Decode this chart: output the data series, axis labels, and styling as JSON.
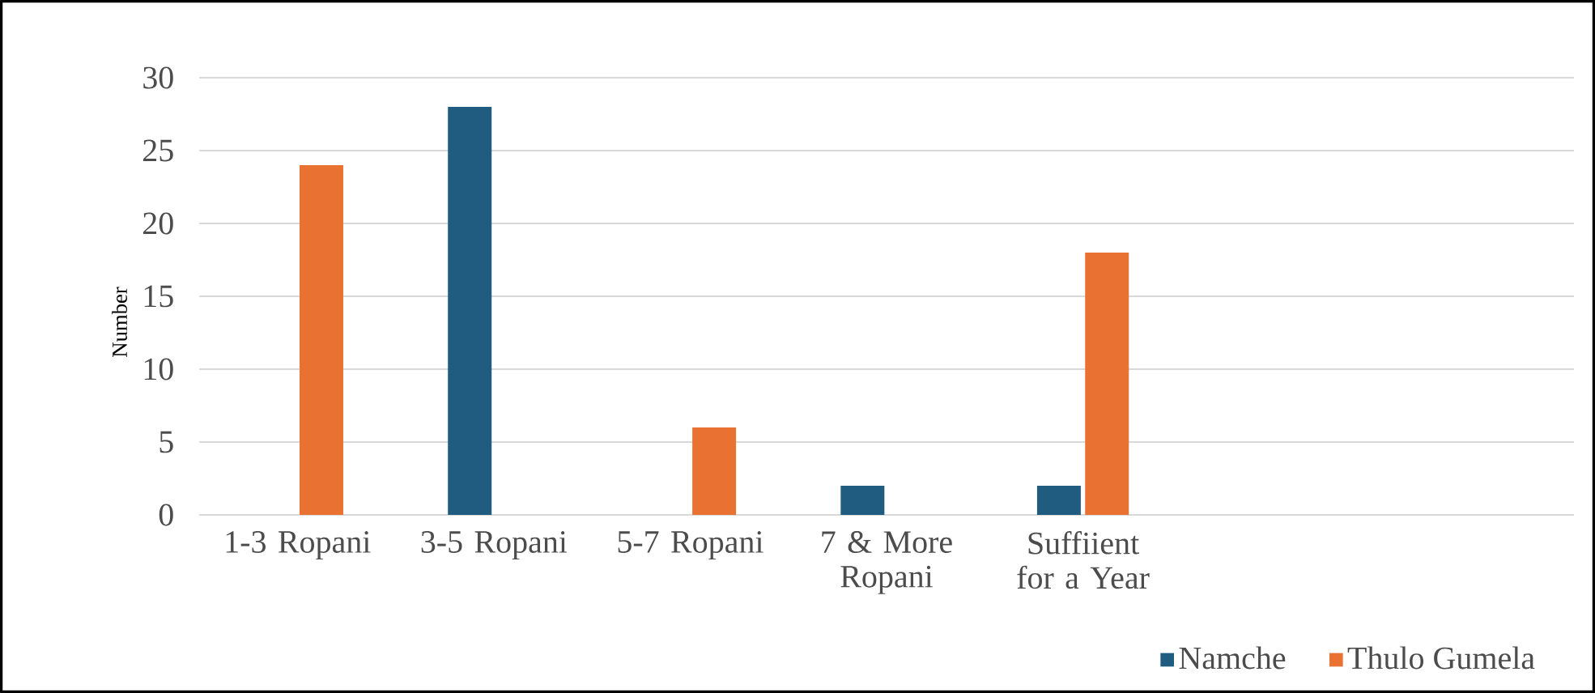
{
  "chart_data": {
    "type": "bar",
    "ylabel": "Number",
    "categories": [
      "1-3 Ropani",
      "3-5 Ropani",
      "5-7 Ropani",
      "7 & More Ropani",
      "Suffiient for a Year",
      null,
      null
    ],
    "series": [
      {
        "name": "Namche",
        "color": "#1f5c80",
        "values": [
          null,
          28,
          null,
          2,
          2,
          null,
          null
        ]
      },
      {
        "name": "Thulo Gumela",
        "color": "#e97132",
        "values": [
          24,
          null,
          6,
          null,
          18,
          null,
          null
        ]
      }
    ],
    "ylim": [
      0,
      30
    ],
    "yticks": [
      0,
      5,
      10,
      15,
      20,
      25,
      30
    ],
    "grid": "y",
    "legend": "bottom right"
  }
}
